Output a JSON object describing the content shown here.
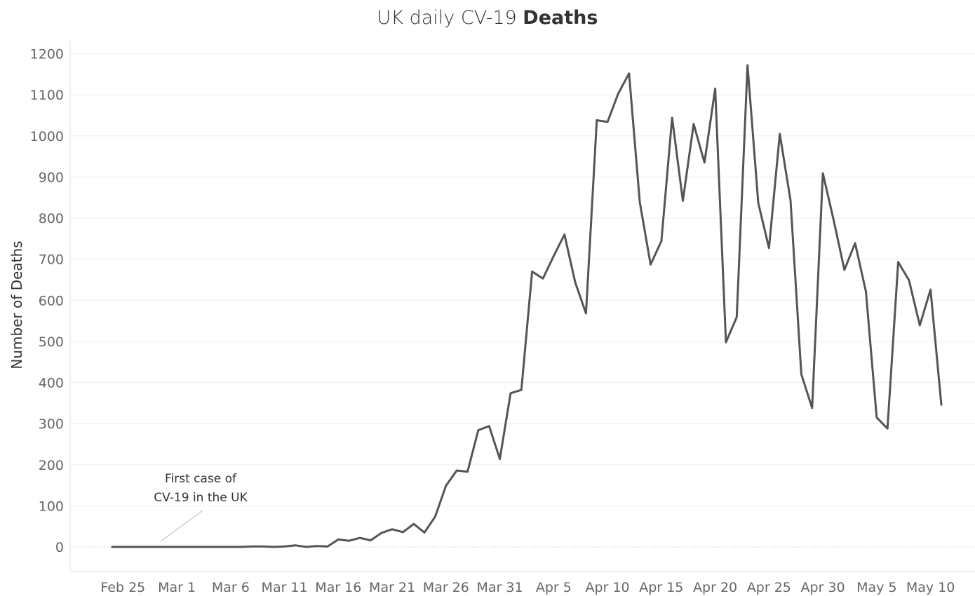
{
  "title": {
    "prefix": "UK daily CV-19 ",
    "emphasis": "Deaths"
  },
  "chart_data": {
    "type": "line",
    "title": "UK daily CV-19 Deaths",
    "xlabel": "",
    "ylabel": "Number of Deaths",
    "ylim": [
      -60,
      1220
    ],
    "yticks": [
      0,
      100,
      200,
      300,
      400,
      500,
      600,
      700,
      800,
      900,
      1000,
      1100,
      1200
    ],
    "xtick_labels": [
      "Feb 25",
      "Mar 1",
      "Mar 6",
      "Mar 11",
      "Mar 16",
      "Mar 21",
      "Mar 26",
      "Mar 31",
      "Apr 5",
      "Apr 10",
      "Apr 15",
      "Apr 20",
      "Apr 25",
      "Apr 30",
      "May 5",
      "May 10"
    ],
    "x_start": "Feb 24",
    "x_end": "May 10",
    "grid": true,
    "line_color": "#555555",
    "grid_color": "#eeeeee",
    "annotation": {
      "text": [
        "First case of",
        "CV-19 in the UK"
      ],
      "x": "Mar 1",
      "y": 0
    },
    "series": [
      {
        "values": [
          0,
          0,
          0,
          0,
          0,
          0,
          0,
          0,
          0,
          0,
          0,
          0,
          0,
          1,
          1,
          0,
          1,
          4,
          0,
          2,
          1,
          18,
          15,
          22,
          16,
          34,
          43,
          36,
          56,
          35,
          74,
          149,
          186,
          183,
          284,
          294,
          214,
          374,
          382,
          670,
          653,
          708,
          760,
          644,
          568,
          1038,
          1034,
          1103,
          1152,
          839,
          687,
          744,
          1044,
          842,
          1029,
          935,
          1115,
          498,
          559,
          1172,
          837,
          727,
          1005,
          843,
          420,
          338,
          909,
          795,
          674,
          739,
          621,
          315,
          288,
          693,
          649,
          539,
          626,
          346
        ]
      }
    ]
  }
}
